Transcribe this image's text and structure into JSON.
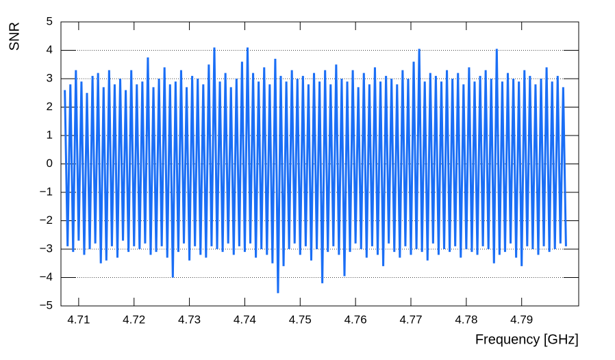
{
  "chart_data": {
    "type": "line",
    "x_label": "Frequency [GHz]",
    "y_label": "SNR",
    "x": [
      4.7075,
      4.708,
      4.7085,
      4.709,
      4.7095,
      4.71,
      4.7105,
      4.711,
      4.7115,
      4.712,
      4.7125,
      4.713,
      4.7135,
      4.714,
      4.7145,
      4.715,
      4.7155,
      4.716,
      4.7165,
      4.717,
      4.7175,
      4.718,
      4.7185,
      4.719,
      4.7195,
      4.72,
      4.7205,
      4.721,
      4.7215,
      4.722,
      4.7225,
      4.723,
      4.7235,
      4.724,
      4.7245,
      4.725,
      4.7255,
      4.726,
      4.7265,
      4.727,
      4.7275,
      4.728,
      4.7285,
      4.729,
      4.7295,
      4.73,
      4.7305,
      4.731,
      4.7315,
      4.732,
      4.7325,
      4.733,
      4.7335,
      4.734,
      4.7345,
      4.735,
      4.7355,
      4.736,
      4.7365,
      4.737,
      4.7375,
      4.738,
      4.7385,
      4.739,
      4.7395,
      4.74,
      4.7405,
      4.741,
      4.7415,
      4.742,
      4.7425,
      4.743,
      4.7435,
      4.744,
      4.7445,
      4.745,
      4.7455,
      4.746,
      4.7465,
      4.747,
      4.7475,
      4.748,
      4.7485,
      4.749,
      4.7495,
      4.75,
      4.7505,
      4.751,
      4.7515,
      4.752,
      4.7525,
      4.753,
      4.7535,
      4.754,
      4.7545,
      4.755,
      4.7555,
      4.756,
      4.7565,
      4.757,
      4.7575,
      4.758,
      4.7585,
      4.759,
      4.7595,
      4.76,
      4.7605,
      4.761,
      4.7615,
      4.762,
      4.7625,
      4.763,
      4.7635,
      4.764,
      4.7645,
      4.765,
      4.7655,
      4.766,
      4.7665,
      4.767,
      4.7675,
      4.768,
      4.7685,
      4.769,
      4.7695,
      4.77,
      4.7705,
      4.771,
      4.7715,
      4.772,
      4.7725,
      4.773,
      4.7735,
      4.774,
      4.7745,
      4.775,
      4.7755,
      4.776,
      4.7765,
      4.777,
      4.7775,
      4.778,
      4.7785,
      4.779,
      4.7795,
      4.78,
      4.7805,
      4.781,
      4.7815,
      4.782,
      4.7825,
      4.783,
      4.7835,
      4.784,
      4.7845,
      4.785,
      4.7855,
      4.786,
      4.7865,
      4.787,
      4.7875,
      4.788,
      4.7885,
      4.789,
      4.7895,
      4.79,
      4.7905,
      4.791,
      4.7915,
      4.792,
      4.7925,
      4.793,
      4.7935,
      4.794,
      4.7945,
      4.795,
      4.7955,
      4.796,
      4.7965,
      4.797,
      4.7975,
      4.798
    ],
    "values": [
      2.6,
      -2.9,
      2.8,
      -3.1,
      3.3,
      -2.7,
      2.9,
      -3.2,
      2.5,
      -3.0,
      3.1,
      -2.8,
      3.2,
      -3.5,
      2.7,
      -3.4,
      3.3,
      -2.9,
      2.8,
      -3.3,
      3.0,
      -2.7,
      2.6,
      -3.1,
      3.3,
      -2.9,
      2.8,
      -3.0,
      2.9,
      -2.8,
      3.75,
      -3.2,
      2.7,
      -3.1,
      3.0,
      -2.9,
      3.4,
      -3.3,
      2.8,
      -4.0,
      2.9,
      -3.1,
      3.3,
      -2.8,
      2.7,
      -3.4,
      3.1,
      -2.9,
      3.0,
      -3.2,
      2.8,
      -3.3,
      3.5,
      -2.9,
      4.1,
      -3.0,
      2.9,
      -3.1,
      3.2,
      -2.8,
      2.7,
      -3.2,
      3.0,
      -2.9,
      3.6,
      -3.1,
      4.1,
      -2.8,
      3.2,
      -3.3,
      2.9,
      -3.0,
      3.4,
      -3.2,
      2.8,
      -3.5,
      3.7,
      -4.55,
      3.1,
      -3.6,
      2.9,
      -3.0,
      3.3,
      -2.8,
      3.0,
      -3.2,
      3.1,
      -2.9,
      2.8,
      -3.4,
      3.2,
      -3.0,
      2.9,
      -4.2,
      3.3,
      -3.1,
      2.8,
      -2.9,
      3.5,
      -3.2,
      3.0,
      -3.95,
      2.9,
      -3.1,
      3.3,
      -2.8,
      2.7,
      -3.0,
      3.2,
      -3.3,
      2.8,
      -2.9,
      3.4,
      -3.2,
      2.9,
      -3.6,
      3.1,
      -2.8,
      3.0,
      -3.1,
      2.8,
      -3.3,
      3.3,
      -2.9,
      3.0,
      -3.2,
      3.6,
      -3.0,
      4.05,
      -3.1,
      2.9,
      -3.4,
      3.2,
      -2.8,
      3.1,
      -3.2,
      2.9,
      -3.0,
      3.3,
      -3.1,
      3.0,
      -2.9,
      3.2,
      -3.3,
      2.8,
      -3.0,
      3.4,
      -3.1,
      2.9,
      -3.2,
      3.1,
      -2.9,
      3.3,
      -3.0,
      3.0,
      -3.5,
      4.05,
      -3.2,
      2.9,
      -3.1,
      3.2,
      -2.8,
      3.0,
      -3.3,
      2.9,
      -3.6,
      3.3,
      -2.9,
      3.1,
      -3.0,
      2.8,
      -3.2,
      3.0,
      -2.9,
      3.4,
      -3.1,
      2.9,
      -3.0,
      3.1,
      -2.8,
      2.7,
      -2.9
    ],
    "color": "#1a6ef5",
    "xlim": [
      4.7068,
      4.8003
    ],
    "xticks": [
      4.71,
      4.72,
      4.73,
      4.74,
      4.75,
      4.76,
      4.77,
      4.78,
      4.79
    ],
    "ylim": [
      -5,
      5
    ],
    "yticks": [
      {
        "value": -5,
        "label": "−5"
      },
      {
        "value": -4,
        "label": "−4"
      },
      {
        "value": -3,
        "label": "−3"
      },
      {
        "value": -2,
        "label": "−2"
      },
      {
        "value": -1,
        "label": "−1"
      },
      0,
      1,
      2,
      3,
      4,
      5
    ],
    "grid": "y"
  }
}
